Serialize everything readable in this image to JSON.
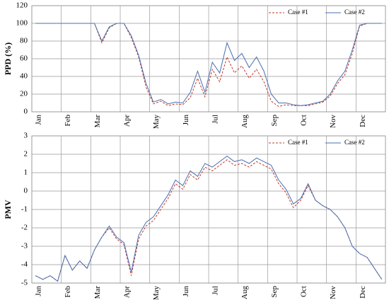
{
  "chart_data": [
    {
      "type": "line",
      "y_label": "PPD (%)",
      "categories": [
        "Jan",
        null,
        null,
        null,
        "Feb",
        null,
        null,
        null,
        "Mar",
        null,
        null,
        null,
        "Apr",
        null,
        null,
        null,
        "May",
        null,
        null,
        null,
        "Jun",
        null,
        null,
        null,
        "Jul",
        null,
        null,
        null,
        "Aug",
        null,
        null,
        null,
        "Sep",
        null,
        null,
        null,
        "Oct",
        null,
        null,
        null,
        "Nov",
        null,
        null,
        null,
        "Dec",
        null,
        null,
        null
      ],
      "series": [
        {
          "name": "Case #1",
          "color": "#c0392b",
          "dashed": true,
          "values": [
            100,
            100,
            100,
            100,
            100,
            100,
            100,
            100,
            100,
            78,
            95,
            100,
            100,
            84,
            62,
            28,
            9,
            12,
            7,
            9,
            8,
            16,
            38,
            17,
            48,
            34,
            62,
            44,
            52,
            38,
            48,
            34,
            12,
            6,
            8,
            7,
            7,
            7,
            9,
            11,
            18,
            32,
            42,
            66,
            97,
            100,
            100,
            100
          ]
        },
        {
          "name": "Case #2",
          "color": "#4a6fb0",
          "dashed": false,
          "values": [
            100,
            100,
            100,
            100,
            100,
            100,
            100,
            100,
            100,
            80,
            96,
            100,
            100,
            86,
            64,
            32,
            11,
            14,
            9,
            11,
            10,
            22,
            46,
            22,
            56,
            44,
            78,
            58,
            66,
            50,
            62,
            46,
            20,
            10,
            10,
            8,
            7,
            8,
            10,
            12,
            20,
            35,
            46,
            70,
            98,
            100,
            100,
            100
          ]
        }
      ],
      "ylim": [
        0,
        120
      ],
      "yticks": [
        0,
        20,
        40,
        60,
        80,
        100,
        120
      ],
      "grid": true,
      "legend": "top-right"
    },
    {
      "type": "line",
      "y_label": "PMV",
      "categories": [
        "Jan",
        null,
        null,
        null,
        "Feb",
        null,
        null,
        null,
        "Mar",
        null,
        null,
        null,
        "Apr",
        null,
        null,
        null,
        "May",
        null,
        null,
        null,
        "Jun",
        null,
        null,
        null,
        "Jul",
        null,
        null,
        null,
        "Aug",
        null,
        null,
        null,
        "Sep",
        null,
        null,
        null,
        "Oct",
        null,
        null,
        null,
        "Nov",
        null,
        null,
        null,
        "Dec",
        null,
        null,
        null
      ],
      "series": [
        {
          "name": "Case #1",
          "color": "#c0392b",
          "dashed": true,
          "values": [
            -4.6,
            -4.8,
            -4.6,
            -4.9,
            -3.5,
            -4.3,
            -3.8,
            -4.2,
            -3.2,
            -2.5,
            -2.0,
            -2.6,
            -2.9,
            -4.6,
            -2.6,
            -1.9,
            -1.6,
            -1.0,
            -0.4,
            0.4,
            0.1,
            0.9,
            0.6,
            1.3,
            1.1,
            1.4,
            1.7,
            1.4,
            1.5,
            1.3,
            1.6,
            1.4,
            1.2,
            0.4,
            -0.1,
            -0.9,
            -0.5,
            0.3,
            -0.5,
            -0.8,
            -1.0,
            -1.4,
            -2.0,
            -3.0,
            -3.4,
            -3.6,
            -4.2,
            -4.8
          ]
        },
        {
          "name": "Case #2",
          "color": "#4a6fb0",
          "dashed": false,
          "values": [
            -4.6,
            -4.8,
            -4.6,
            -4.9,
            -3.5,
            -4.3,
            -3.8,
            -4.2,
            -3.2,
            -2.5,
            -1.9,
            -2.5,
            -2.8,
            -4.4,
            -2.4,
            -1.7,
            -1.4,
            -0.8,
            -0.2,
            0.6,
            0.3,
            1.1,
            0.8,
            1.5,
            1.3,
            1.6,
            1.9,
            1.6,
            1.7,
            1.5,
            1.8,
            1.6,
            1.4,
            0.6,
            0.1,
            -0.7,
            -0.4,
            0.4,
            -0.5,
            -0.8,
            -1.0,
            -1.4,
            -2.0,
            -3.0,
            -3.4,
            -3.6,
            -4.2,
            -4.8
          ]
        }
      ],
      "ylim": [
        -5,
        3
      ],
      "yticks": [
        -5,
        -4,
        -3,
        -2,
        -1,
        0,
        1,
        2,
        3
      ],
      "grid": true,
      "legend": "top-right"
    }
  ]
}
